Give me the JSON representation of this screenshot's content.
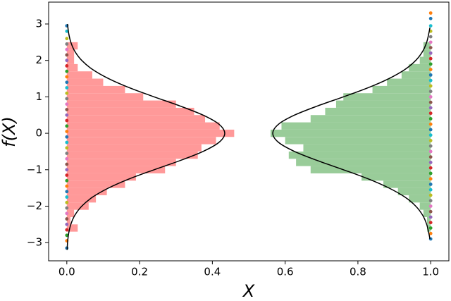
{
  "chart_data": {
    "type": "histogram",
    "orientation": "horizontal",
    "xlabel": "X",
    "ylabel": "f(X)",
    "xlim": [
      -0.05,
      1.05
    ],
    "ylim": [
      -3.5,
      3.6
    ],
    "xticks": [
      {
        "value": 0,
        "label": "0.0"
      },
      0.2,
      0.4,
      0.6,
      0.8,
      {
        "value": 1,
        "label": "1.0"
      }
    ],
    "yticks": [
      {
        "value": -3,
        "label": "−3"
      },
      {
        "value": -2,
        "label": "−2"
      },
      {
        "value": -1,
        "label": "−1"
      },
      0,
      1,
      2,
      3
    ],
    "bins": [
      -2.7,
      -2.5,
      -2.3,
      -2.1,
      -1.9,
      -1.7,
      -1.5,
      -1.3,
      -1.1,
      -0.9,
      -0.7,
      -0.5,
      -0.3,
      -0.1,
      0.1,
      0.3,
      0.5,
      0.7,
      0.9,
      1.1,
      1.3,
      1.5,
      1.7,
      1.9,
      2.1,
      2.3,
      2.5
    ],
    "series": [
      {
        "color": "#ff9999",
        "baseline": 0,
        "direction": "right",
        "values": [
          0.03,
          0.01,
          0.02,
          0.06,
          0.08,
          0.11,
          0.16,
          0.19,
          0.27,
          0.3,
          0.36,
          0.37,
          0.41,
          0.46,
          0.42,
          0.38,
          0.35,
          0.3,
          0.21,
          0.16,
          0.1,
          0.07,
          0.03,
          0.02,
          0.02,
          0.03
        ]
      },
      {
        "color": "#99cc99",
        "baseline": 1,
        "direction": "left",
        "values": [
          0.01,
          0.01,
          0.02,
          0.03,
          0.06,
          0.09,
          0.13,
          0.19,
          0.33,
          0.37,
          0.39,
          0.35,
          0.4,
          0.44,
          0.41,
          0.33,
          0.29,
          0.26,
          0.24,
          0.16,
          0.12,
          0.08,
          0.06,
          0.03,
          0.02,
          0.02
        ]
      }
    ],
    "curves": [
      {
        "color": "#000000",
        "y": [
          -3.2,
          -3,
          -2.75,
          -2.5,
          -2.25,
          -2,
          -1.75,
          -1.5,
          -1.25,
          -1,
          -0.75,
          -0.5,
          -0.25,
          0,
          0.25,
          0.5,
          0.75,
          1,
          1.25,
          1.5,
          1.75,
          2,
          2.25,
          2.5,
          2.75,
          3
        ],
        "x": [
          0.001,
          0.002,
          0.005,
          0.011,
          0.022,
          0.041,
          0.071,
          0.115,
          0.172,
          0.24,
          0.311,
          0.374,
          0.418,
          0.434,
          0.418,
          0.374,
          0.311,
          0.24,
          0.172,
          0.115,
          0.071,
          0.041,
          0.022,
          0.011,
          0.005,
          0.002
        ]
      },
      {
        "color": "#000000",
        "y": [
          -2.9,
          -2.75,
          -2.5,
          -2.25,
          -2,
          -1.75,
          -1.5,
          -1.25,
          -1,
          -0.75,
          -0.5,
          -0.25,
          0,
          0.25,
          0.5,
          0.75,
          1,
          1.25,
          1.5,
          1.75,
          2,
          2.25,
          2.5,
          2.75,
          2.9
        ],
        "x": [
          0.998,
          0.995,
          0.989,
          0.978,
          0.959,
          0.929,
          0.885,
          0.828,
          0.76,
          0.689,
          0.626,
          0.582,
          0.566,
          0.582,
          0.626,
          0.689,
          0.76,
          0.828,
          0.885,
          0.929,
          0.959,
          0.978,
          0.989,
          0.995,
          0.998
        ]
      }
    ],
    "point_colors": [
      "#1f77b4",
      "#ff7f0e",
      "#2ca02c",
      "#d62728",
      "#9467bd",
      "#8c564b",
      "#e377c2",
      "#7f7f7f",
      "#bcbd22",
      "#17becf"
    ],
    "strips": [
      {
        "x": 0,
        "y": [
          -3.15,
          -2.95,
          -2.8,
          -2.65,
          -2.5,
          -2.35,
          -2.2,
          -2.05,
          -1.9,
          -1.75,
          -1.6,
          -1.45,
          -1.3,
          -1.15,
          -1.0,
          -0.85,
          -0.7,
          -0.55,
          -0.4,
          -0.25,
          -0.1,
          0.05,
          0.2,
          0.35,
          0.5,
          0.65,
          0.8,
          0.95,
          1.1,
          1.25,
          1.4,
          1.55,
          1.7,
          1.85,
          2.0,
          2.15,
          2.3,
          2.45,
          2.6,
          2.8,
          2.95
        ]
      },
      {
        "x": 1,
        "y": [
          -2.9,
          -2.75,
          -2.6,
          -2.45,
          -2.3,
          -2.15,
          -2.0,
          -1.85,
          -1.7,
          -1.55,
          -1.4,
          -1.25,
          -1.1,
          -0.95,
          -0.8,
          -0.65,
          -0.5,
          -0.35,
          -0.2,
          -0.05,
          0.1,
          0.25,
          0.4,
          0.55,
          0.7,
          0.85,
          1.0,
          1.15,
          1.3,
          1.45,
          1.6,
          1.75,
          1.9,
          2.05,
          2.2,
          2.35,
          2.5,
          2.65,
          2.8,
          2.95,
          3.15,
          3.3
        ]
      }
    ]
  }
}
